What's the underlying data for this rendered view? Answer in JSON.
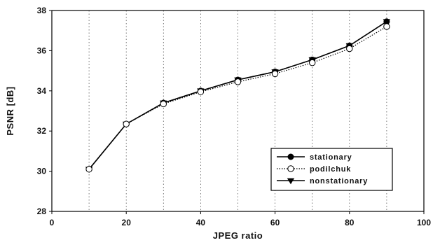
{
  "chart_data": {
    "type": "line",
    "title": "",
    "xlabel": "JPEG ratio",
    "ylabel": "PSNR [dB]",
    "xlim": [
      0,
      100
    ],
    "ylim": [
      28,
      38
    ],
    "x_ticks": [
      0,
      20,
      40,
      60,
      80,
      100
    ],
    "y_ticks": [
      28,
      30,
      32,
      34,
      36,
      38
    ],
    "vertical_gridlines_at": [
      10,
      20,
      30,
      40,
      50,
      60,
      70,
      80,
      90
    ],
    "grid": "vertical dotted",
    "legend_position": "lower-right",
    "x": [
      10,
      20,
      30,
      40,
      50,
      60,
      70,
      80,
      90
    ],
    "series": [
      {
        "name": "stationary",
        "marker": "filled-circle",
        "line": "solid",
        "color": "#000000",
        "values": [
          30.1,
          32.35,
          33.4,
          34.0,
          34.55,
          34.95,
          35.55,
          36.25,
          37.45
        ]
      },
      {
        "name": "podilchuk",
        "marker": "open-circle",
        "line": "dotted",
        "color": "#000000",
        "values": [
          30.1,
          32.35,
          33.35,
          33.95,
          34.45,
          34.85,
          35.4,
          36.1,
          37.2
        ]
      },
      {
        "name": "nonstationary",
        "marker": "filled-triangle-down",
        "line": "solid",
        "color": "#000000",
        "values": [
          30.1,
          32.35,
          33.4,
          34.0,
          34.55,
          34.95,
          35.55,
          36.25,
          37.45
        ]
      }
    ]
  }
}
